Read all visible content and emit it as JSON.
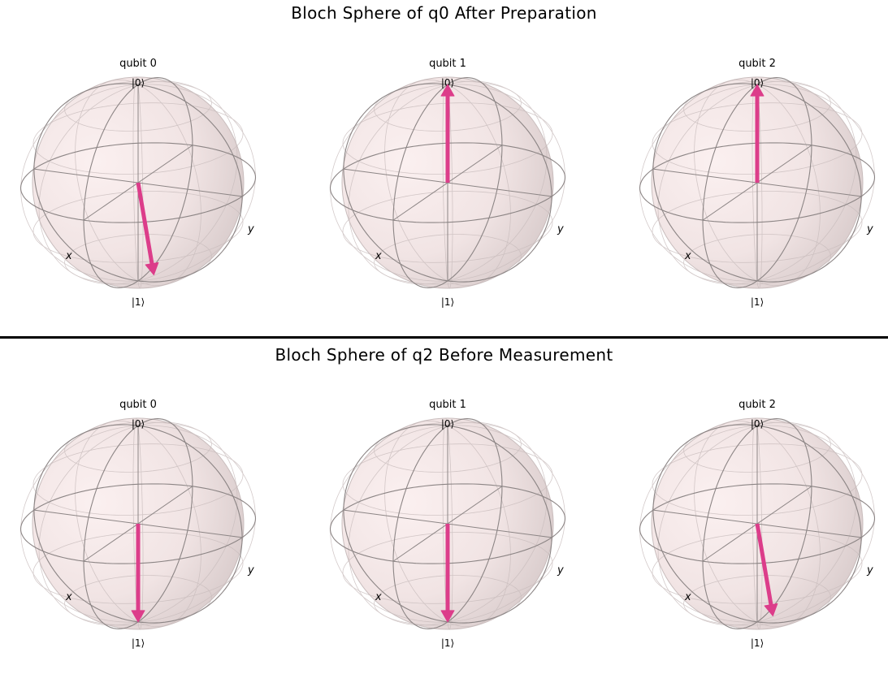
{
  "chart_data": [
    {
      "type": "bloch_sphere",
      "title": "Bloch Sphere of q0 After Preparation",
      "spheres": [
        {
          "title": "qubit 0",
          "top_label": "|0⟩",
          "bottom_label": "|1⟩",
          "x_label": "x",
          "y_label": "y",
          "vector": {
            "x": 0.61,
            "y": 0.47,
            "z": -0.64
          }
        },
        {
          "title": "qubit 1",
          "top_label": "|0⟩",
          "bottom_label": "|1⟩",
          "x_label": "x",
          "y_label": "y",
          "vector": {
            "x": 0,
            "y": 0,
            "z": 1
          }
        },
        {
          "title": "qubit 2",
          "top_label": "|0⟩",
          "bottom_label": "|1⟩",
          "x_label": "x",
          "y_label": "y",
          "vector": {
            "x": 0,
            "y": 0,
            "z": 1
          }
        }
      ]
    },
    {
      "type": "bloch_sphere",
      "title": "Bloch Sphere of q2 Before Measurement",
      "spheres": [
        {
          "title": "qubit 0",
          "top_label": "|0⟩",
          "bottom_label": "|1⟩",
          "x_label": "x",
          "y_label": "y",
          "vector": {
            "x": 0,
            "y": 0,
            "z": -1
          }
        },
        {
          "title": "qubit 1",
          "top_label": "|0⟩",
          "bottom_label": "|1⟩",
          "x_label": "x",
          "y_label": "y",
          "vector": {
            "x": 0,
            "y": 0,
            "z": -1
          }
        },
        {
          "title": "qubit 2",
          "top_label": "|0⟩",
          "bottom_label": "|1⟩",
          "x_label": "x",
          "y_label": "y",
          "vector": {
            "x": 0.61,
            "y": 0.47,
            "z": -0.64
          }
        }
      ]
    }
  ],
  "colors": {
    "vector": "#dc3d8a",
    "sphere_fill": "#f1e4e4",
    "sphere_shade": "#d9cccc",
    "wire": "#8c8585",
    "wire_light": "#c9bdbd"
  }
}
